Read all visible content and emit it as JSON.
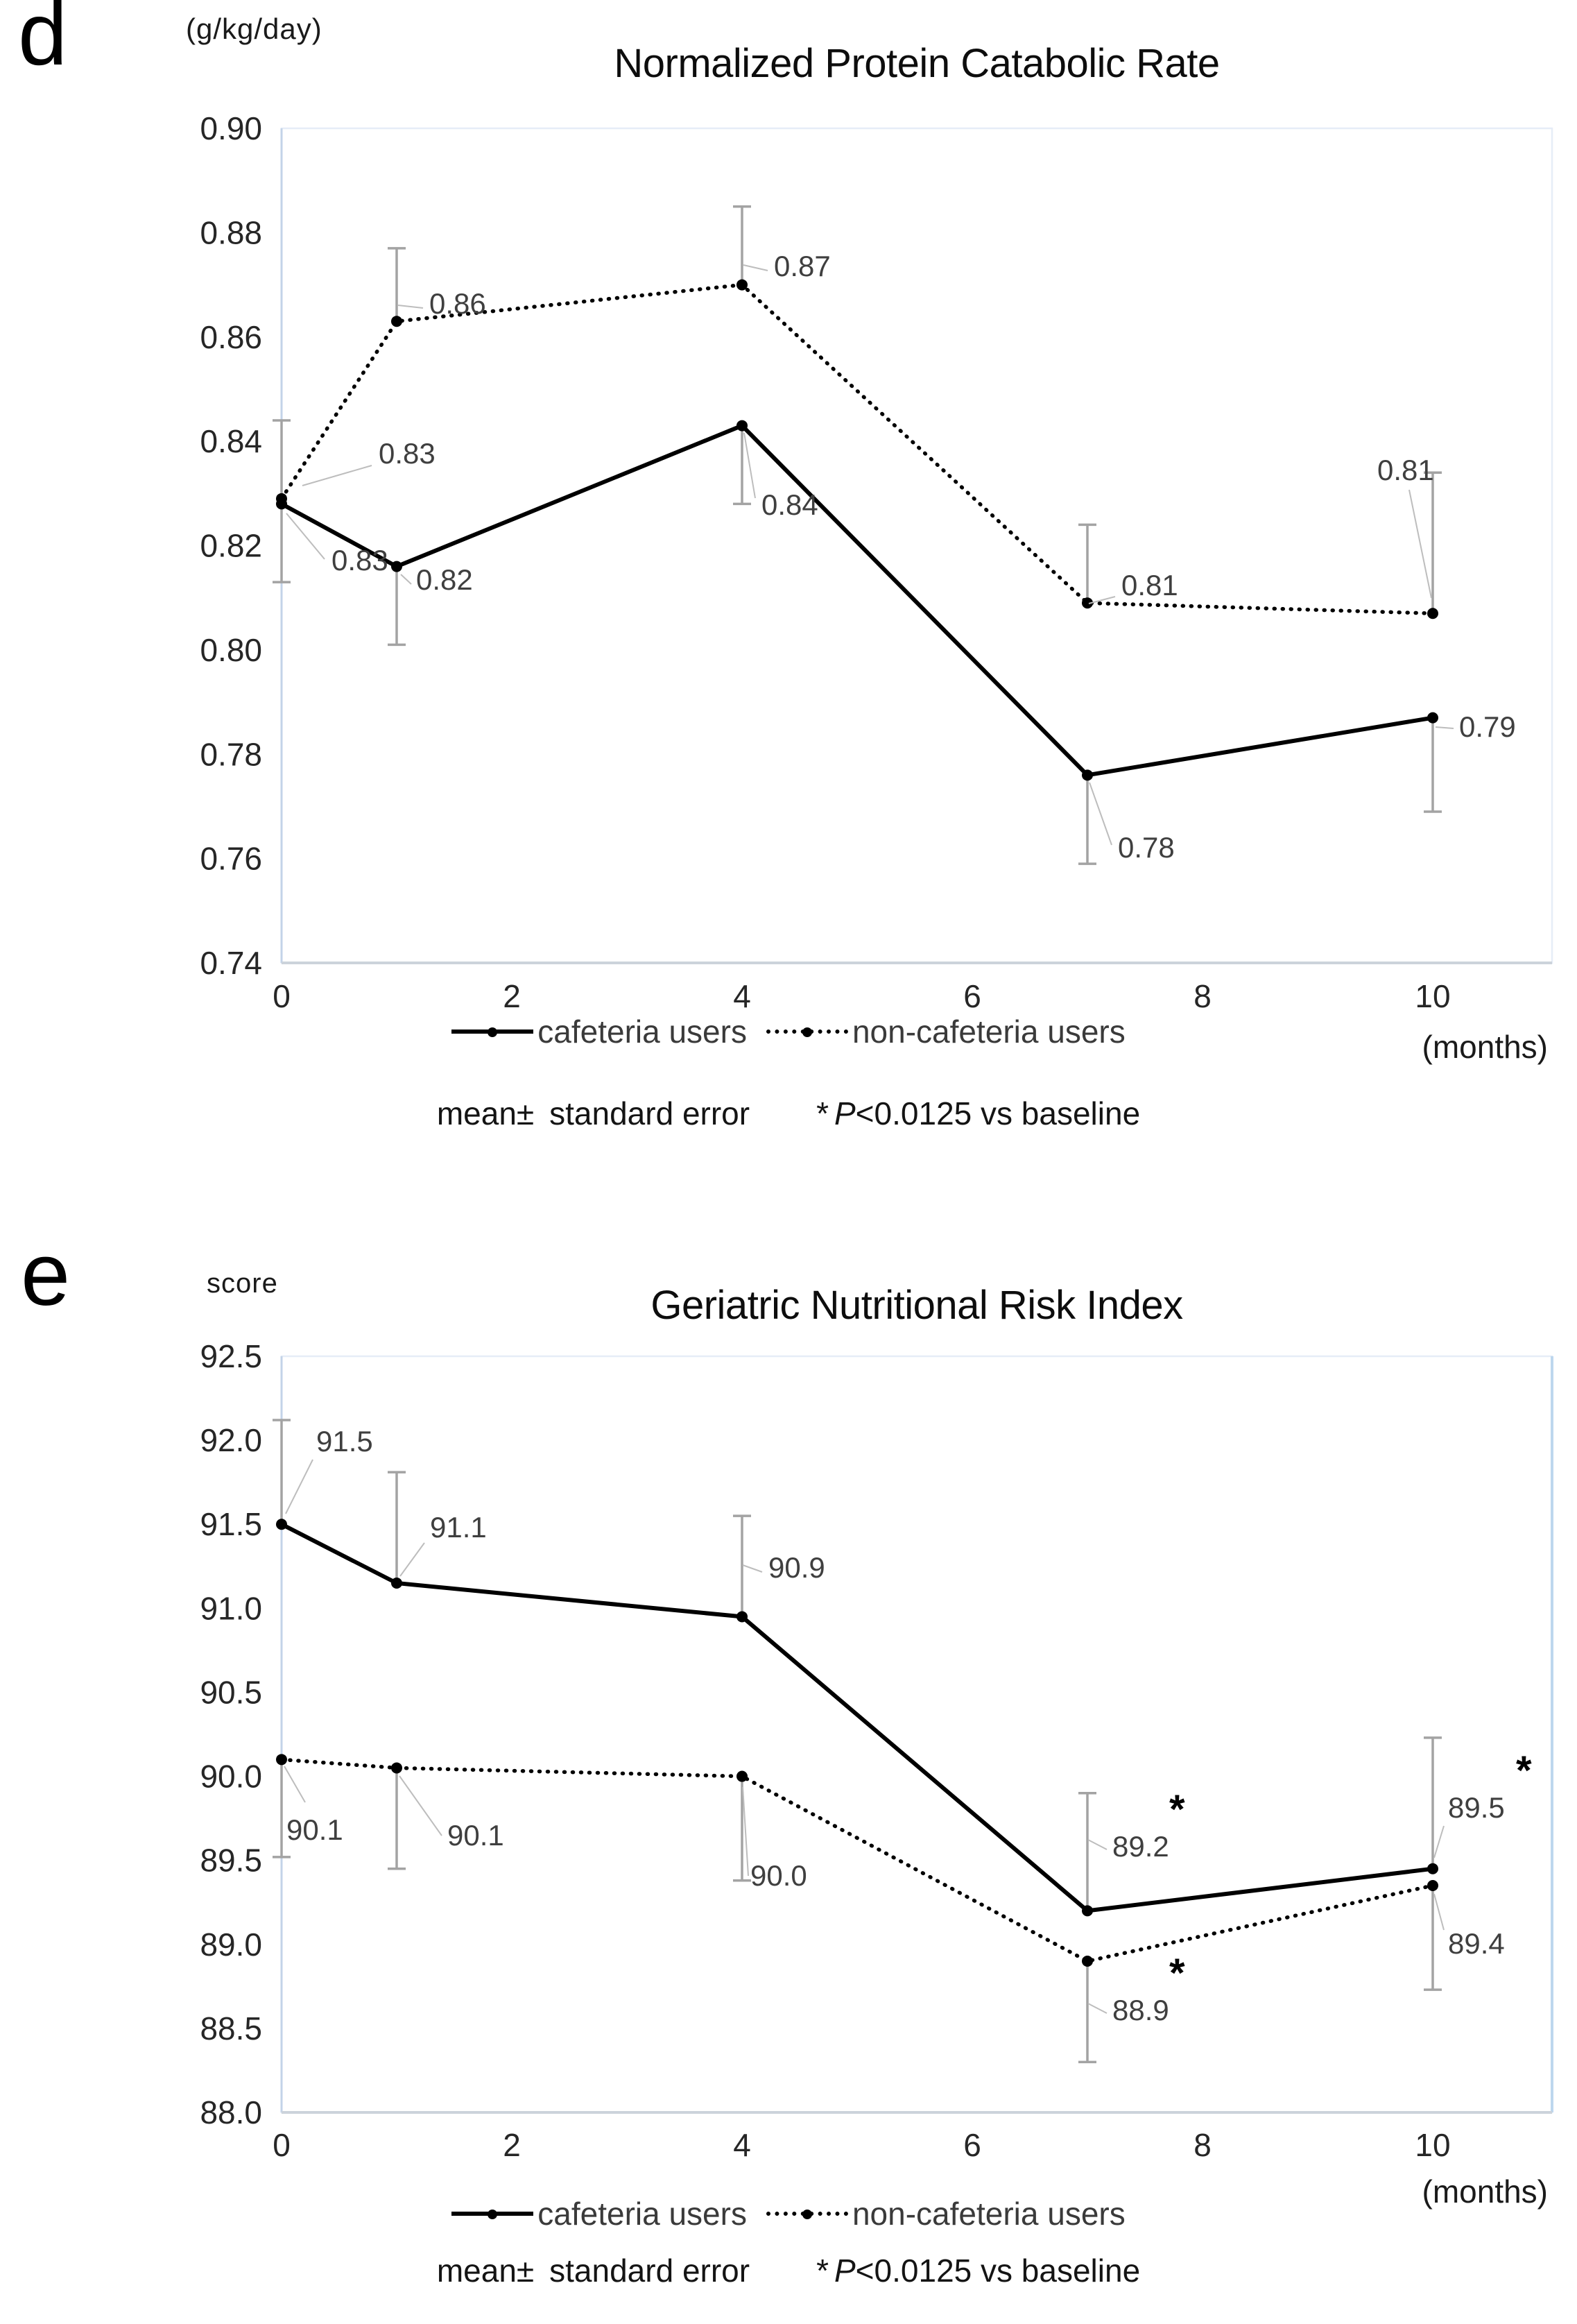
{
  "footnote": {
    "mean": "mean±",
    "se": "standard error",
    "star": "*",
    "p": "P",
    "rest": "<0.0125 vs baseline"
  },
  "chart_data": [
    {
      "type": "line",
      "panel_label": "d",
      "title": "Normalized Protein Catabolic Rate",
      "ylabel": "(g/kg/day)",
      "xlabel": "(months)",
      "x_months": [
        0,
        1,
        4,
        7,
        10
      ],
      "x_ticks": [
        "0",
        "2",
        "4",
        "6",
        "8",
        "10"
      ],
      "y_ticks": [
        "0.90",
        "0.88",
        "0.86",
        "0.84",
        "0.82",
        "0.80",
        "0.78",
        "0.76",
        "0.74"
      ],
      "ylim": [
        0.74,
        0.9
      ],
      "grid": false,
      "legend_position": "bottom",
      "error_bars": "standard error",
      "series": [
        {
          "name": "cafeteria users",
          "style": "solid",
          "values": [
            0.828,
            0.816,
            0.843,
            0.776,
            0.787
          ],
          "point_labels": [
            "0.83",
            "0.82",
            "0.84",
            "0.78",
            "0.79"
          ],
          "error_dir": "down",
          "error": [
            0.015,
            0.015,
            0.015,
            0.017,
            0.018
          ],
          "significant": [
            false,
            false,
            false,
            false,
            false
          ]
        },
        {
          "name": "non-cafeteria users",
          "style": "dotted",
          "values": [
            0.829,
            0.863,
            0.87,
            0.809,
            0.807
          ],
          "point_labels": [
            "0.83",
            "0.86",
            "0.87",
            "0.81",
            "0.81"
          ],
          "error_dir": "up",
          "error": [
            0.015,
            0.014,
            0.015,
            0.015,
            0.027
          ],
          "significant": [
            false,
            false,
            false,
            false,
            false
          ]
        }
      ]
    },
    {
      "type": "line",
      "panel_label": "e",
      "title": "Geriatric Nutritional Risk Index",
      "ylabel": "score",
      "xlabel": "(months)",
      "x_months": [
        0,
        1,
        4,
        7,
        10
      ],
      "x_ticks": [
        "0",
        "2",
        "4",
        "6",
        "8",
        "10"
      ],
      "y_ticks": [
        "92.5",
        "92.0",
        "91.5",
        "91.0",
        "90.5",
        "90.0",
        "89.5",
        "89.0",
        "88.5",
        "88.0"
      ],
      "ylim": [
        88.0,
        92.5
      ],
      "grid": false,
      "legend_position": "bottom",
      "error_bars": "standard error",
      "series": [
        {
          "name": "cafeteria users",
          "style": "solid",
          "values": [
            91.5,
            91.15,
            90.95,
            89.2,
            89.45
          ],
          "point_labels": [
            "91.5",
            "91.1",
            "90.9",
            "89.2",
            "89.5"
          ],
          "error_dir": "up",
          "error": [
            0.62,
            0.66,
            0.6,
            0.7,
            0.78
          ],
          "significant": [
            false,
            false,
            false,
            true,
            true
          ]
        },
        {
          "name": "non-cafeteria users",
          "style": "dotted",
          "values": [
            90.1,
            90.05,
            90.0,
            88.9,
            89.35
          ],
          "point_labels": [
            "90.1",
            "90.1",
            "90.0",
            "88.9",
            "89.4"
          ],
          "error_dir": "down",
          "error": [
            0.58,
            0.6,
            0.62,
            0.6,
            0.62
          ],
          "significant": [
            false,
            false,
            false,
            true,
            false
          ]
        }
      ]
    }
  ]
}
